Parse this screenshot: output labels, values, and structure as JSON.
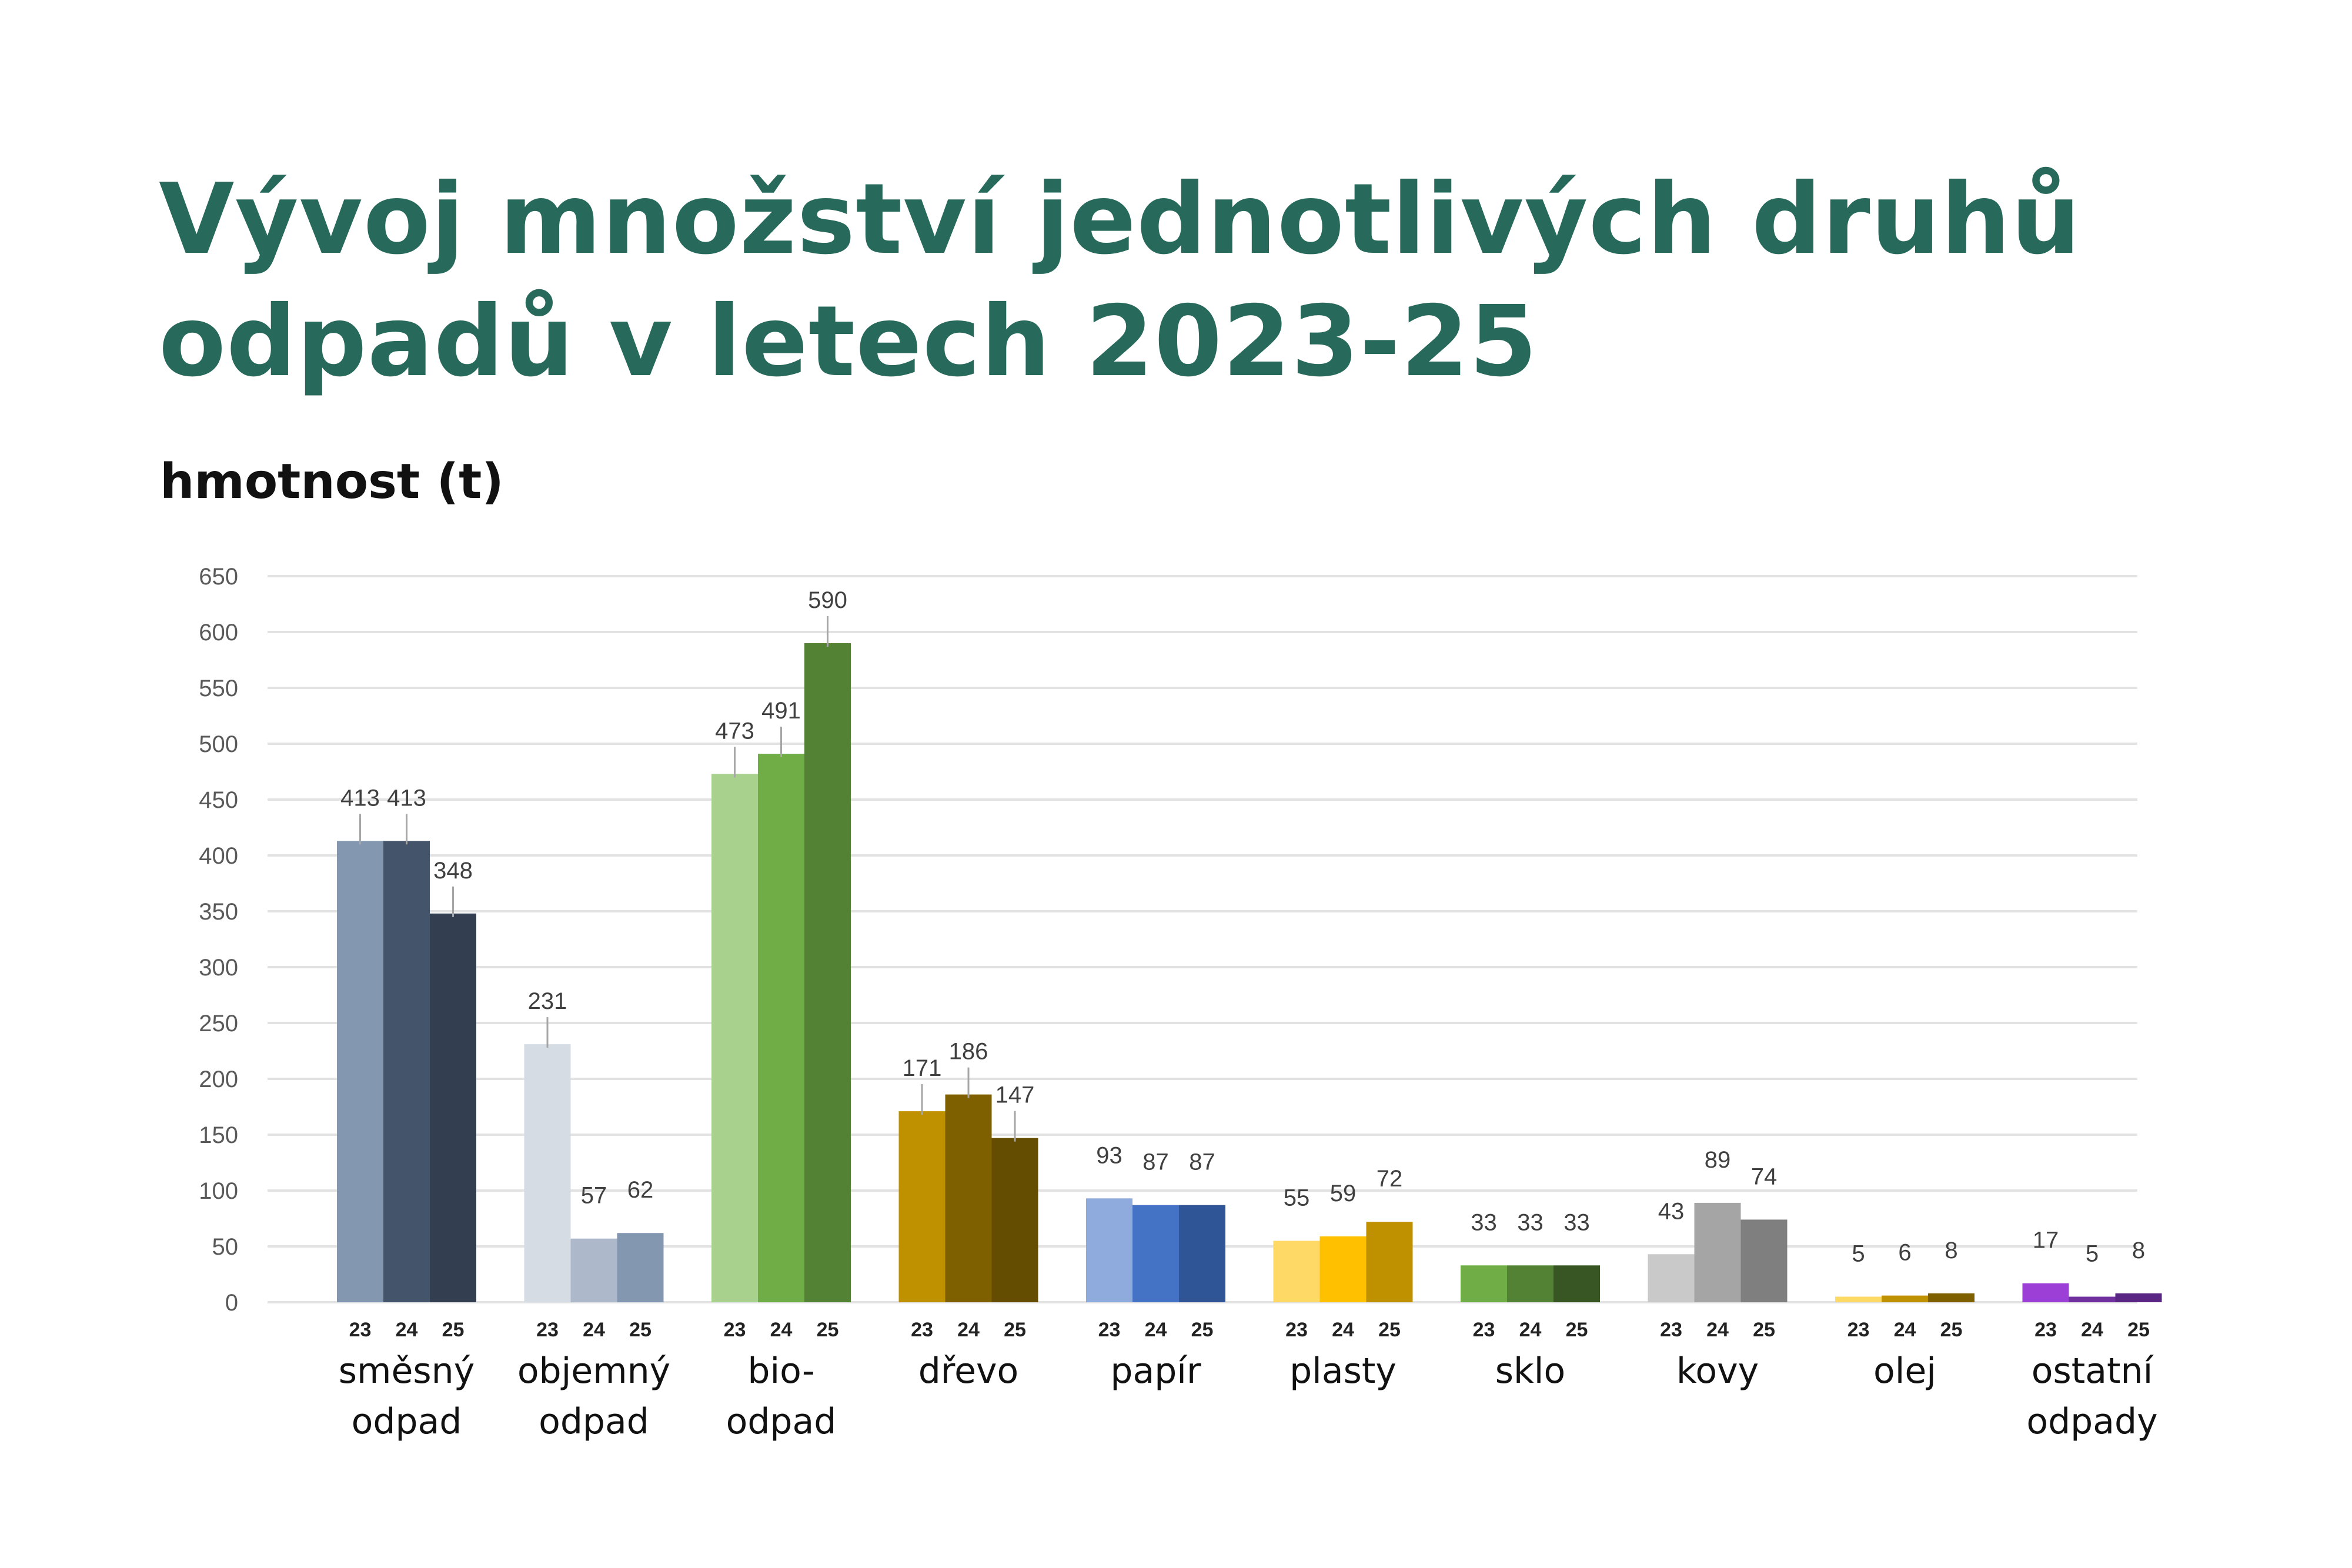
{
  "title": "Vývoj množství jednotlivých druhů odpadů v letech 2023-25",
  "ylabel": "hmotnost (t)",
  "chart_data": {
    "type": "bar",
    "title": "Vývoj množství jednotlivých druhů odpadů v letech 2023-25",
    "ylabel": "hmotnost (t)",
    "xlabel": "",
    "ylim": [
      0,
      650
    ],
    "yticks": [
      0,
      50,
      100,
      150,
      200,
      250,
      300,
      350,
      400,
      450,
      500,
      550,
      600,
      650
    ],
    "grid": true,
    "legend": "none",
    "year_labels": [
      "23",
      "24",
      "25"
    ],
    "categories": [
      {
        "label": [
          "směsný",
          "odpad"
        ],
        "values": [
          413,
          413,
          348
        ],
        "colors": [
          "#8497b0",
          "#44546a",
          "#333f50"
        ]
      },
      {
        "label": [
          "objemný",
          "odpad"
        ],
        "values": [
          231,
          57,
          62
        ],
        "colors": [
          "#d6dce4",
          "#adb9ca",
          "#8497b0"
        ]
      },
      {
        "label": [
          "bio-",
          "odpad"
        ],
        "values": [
          473,
          491,
          590
        ],
        "colors": [
          "#a9d18e",
          "#70ad47",
          "#548235"
        ]
      },
      {
        "label": [
          "dřevo"
        ],
        "values": [
          171,
          186,
          147
        ],
        "colors": [
          "#bf9000",
          "#7f6000",
          "#644c00"
        ]
      },
      {
        "label": [
          "papír"
        ],
        "values": [
          93,
          87,
          87
        ],
        "colors": [
          "#8faadc",
          "#4472c4",
          "#2f5597"
        ]
      },
      {
        "label": [
          "plasty"
        ],
        "values": [
          55,
          59,
          72
        ],
        "colors": [
          "#ffd966",
          "#ffc000",
          "#bf9000"
        ]
      },
      {
        "label": [
          "sklo"
        ],
        "values": [
          33,
          33,
          33
        ],
        "colors": [
          "#70ad47",
          "#548235",
          "#375623"
        ]
      },
      {
        "label": [
          "kovy"
        ],
        "values": [
          43,
          89,
          74
        ],
        "colors": [
          "#c9c9c9",
          "#a5a5a5",
          "#7f7f7f"
        ]
      },
      {
        "label": [
          "olej"
        ],
        "values": [
          5,
          6,
          8
        ],
        "colors": [
          "#ffd966",
          "#bf9000",
          "#7f6000"
        ]
      },
      {
        "label": [
          "ostatní",
          "odpady"
        ],
        "values": [
          17,
          5,
          8
        ],
        "colors": [
          "#9b3fd6",
          "#7030a0",
          "#5a2683"
        ]
      }
    ]
  }
}
